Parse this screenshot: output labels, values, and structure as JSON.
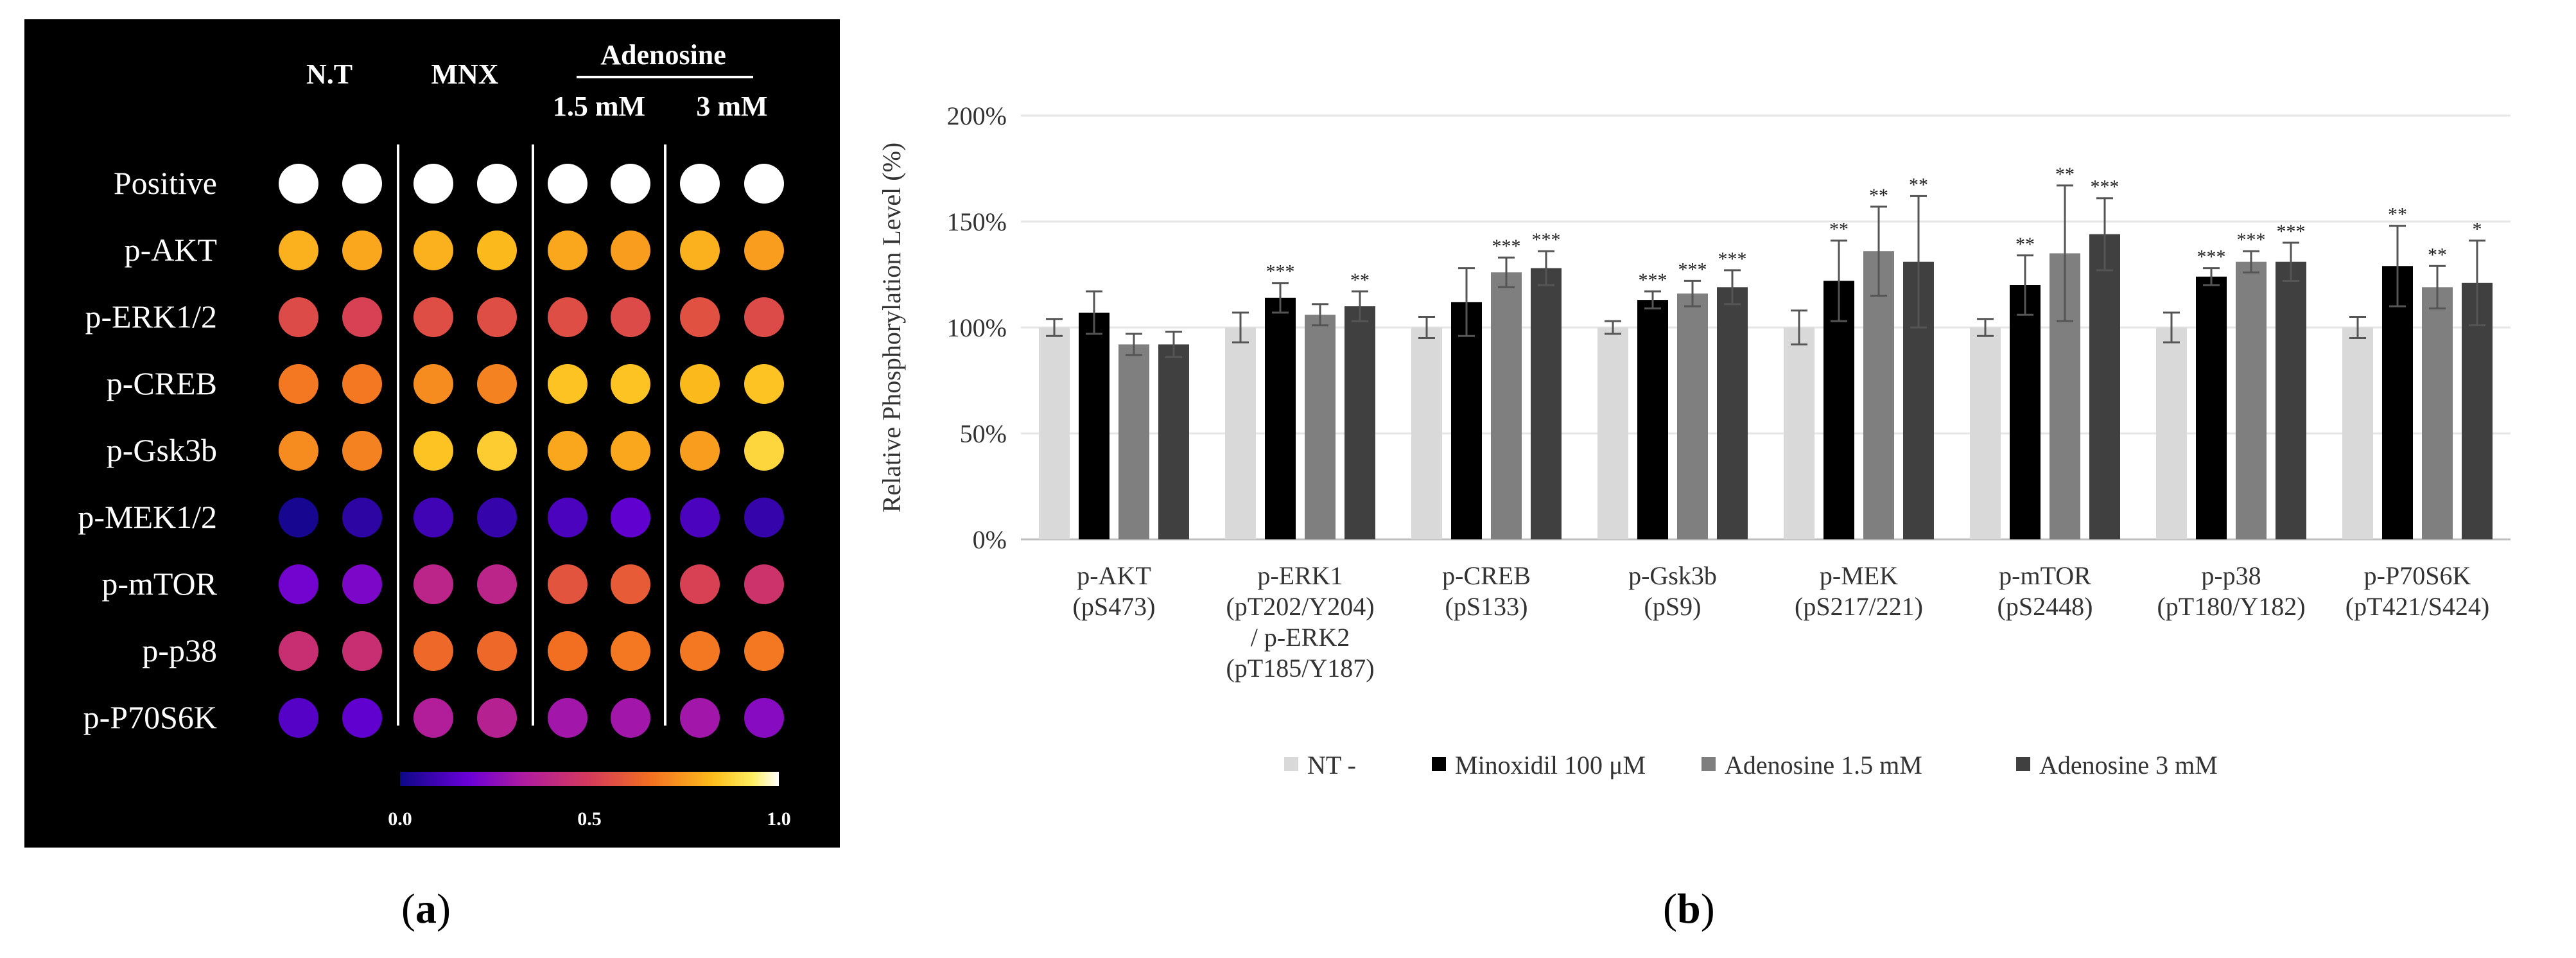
{
  "panel_a": {
    "groups": [
      "N.T",
      "MNX",
      "Adenosine"
    ],
    "sub_labels": [
      "1.5 mM",
      "3 mM"
    ],
    "rows": [
      "Positive",
      "p-AKT",
      "p-ERK1/2",
      "p-CREB",
      "p-Gsk3b",
      "p-MEK1/2",
      "p-mTOR",
      "p-p38",
      "p-P70S6K"
    ],
    "heat_values": [
      [
        1.0,
        1.0,
        1.0,
        1.0,
        1.0,
        1.0,
        1.0,
        1.0
      ],
      [
        0.8,
        0.78,
        0.8,
        0.82,
        0.78,
        0.76,
        0.8,
        0.76
      ],
      [
        0.55,
        0.52,
        0.56,
        0.56,
        0.56,
        0.55,
        0.57,
        0.55
      ],
      [
        0.68,
        0.68,
        0.72,
        0.7,
        0.84,
        0.84,
        0.82,
        0.84
      ],
      [
        0.72,
        0.7,
        0.84,
        0.86,
        0.78,
        0.78,
        0.76,
        0.88
      ],
      [
        0.02,
        0.06,
        0.1,
        0.08,
        0.12,
        0.16,
        0.12,
        0.08
      ],
      [
        0.2,
        0.22,
        0.38,
        0.38,
        0.58,
        0.6,
        0.52,
        0.46
      ],
      [
        0.44,
        0.44,
        0.64,
        0.64,
        0.66,
        0.68,
        0.68,
        0.68
      ],
      [
        0.14,
        0.16,
        0.34,
        0.36,
        0.3,
        0.3,
        0.3,
        0.24
      ]
    ],
    "colorbar": {
      "min_label": "0.0",
      "mid_label": "0.5",
      "max_label": "1.0"
    },
    "caption_letter": "a"
  },
  "chart_data": {
    "type": "bar",
    "ylabel": "Relative Phosphorylation Level (%)",
    "ylim": [
      0,
      200
    ],
    "yticks": [
      0,
      50,
      100,
      150,
      200
    ],
    "ytick_labels": [
      "0%",
      "50%",
      "100%",
      "150%",
      "200%"
    ],
    "categories": [
      [
        "p-AKT",
        "(pS473)"
      ],
      [
        "p-ERK1",
        "(pT202/Y204)",
        "/ p-ERK2",
        "(pT185/Y187)"
      ],
      [
        "p-CREB",
        "(pS133)"
      ],
      [
        "p-Gsk3b",
        "(pS9)"
      ],
      [
        "p-MEK",
        "(pS217/221)"
      ],
      [
        "p-mTOR",
        "(pS2448)"
      ],
      [
        "p-p38",
        "(pT180/Y182)"
      ],
      [
        "p-P70S6K",
        "(pT421/S424)"
      ]
    ],
    "series": [
      {
        "name": "NT -",
        "color": "#d9d9d9",
        "values": [
          100,
          100,
          100,
          100,
          100,
          100,
          100,
          100
        ],
        "errors": [
          4,
          7,
          5,
          3,
          8,
          4,
          7,
          5
        ],
        "sig": [
          "",
          "",
          "",
          "",
          "",
          "",
          "",
          ""
        ]
      },
      {
        "name": "Minoxidil 100 μM",
        "color": "#000000",
        "values": [
          107,
          114,
          112,
          113,
          122,
          120,
          124,
          129
        ],
        "errors": [
          10,
          7,
          16,
          4,
          19,
          14,
          4,
          19
        ],
        "sig": [
          "",
          "***",
          "",
          "***",
          "**",
          "**",
          "***",
          "**"
        ]
      },
      {
        "name": "Adenosine 1.5 mM",
        "color": "#7f7f7f",
        "values": [
          92,
          106,
          126,
          116,
          136,
          135,
          131,
          119
        ],
        "errors": [
          5,
          5,
          7,
          6,
          21,
          32,
          5,
          10
        ],
        "sig": [
          "",
          "",
          "***",
          "***",
          "**",
          "**",
          "***",
          "**"
        ]
      },
      {
        "name": "Adenosine 3 mM",
        "color": "#404040",
        "values": [
          92,
          110,
          128,
          119,
          131,
          144,
          131,
          121
        ],
        "errors": [
          6,
          7,
          8,
          8,
          31,
          17,
          9,
          20
        ],
        "sig": [
          "",
          "**",
          "***",
          "***",
          "**",
          "***",
          "***",
          "*"
        ]
      }
    ],
    "legend_position": "bottom",
    "caption_letter": "b"
  }
}
